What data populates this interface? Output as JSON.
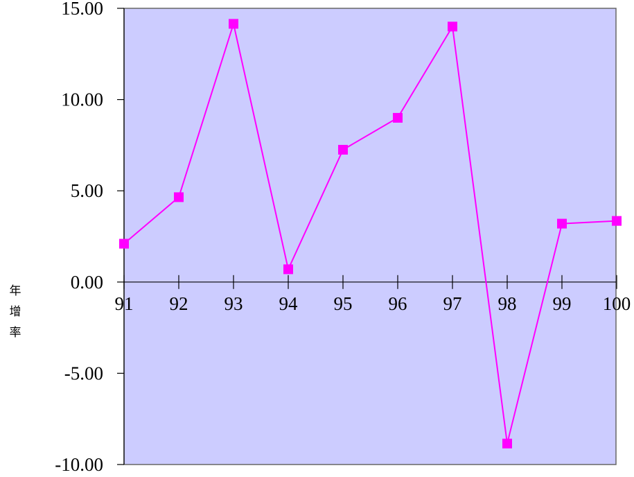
{
  "chart_data": {
    "type": "line",
    "title": "",
    "xlabel": "",
    "ylabel": [
      "年",
      "增",
      "率"
    ],
    "x": [
      "91",
      "92",
      "93",
      "94",
      "95",
      "96",
      "97",
      "98",
      "99",
      "100"
    ],
    "series": [
      {
        "values": [
          2.1,
          4.65,
          14.15,
          0.7,
          7.25,
          9.0,
          14.0,
          -8.85,
          3.2,
          3.35
        ]
      }
    ],
    "ylim": [
      -10,
      15
    ],
    "yticks": [
      "15.00",
      "10.00",
      "5.00",
      "0.00",
      "-5.00",
      "-10.00"
    ],
    "grid": false,
    "legend": "none",
    "colors": {
      "plot_background": "#ccccff",
      "series": "#ff00ff",
      "axis": "#000000",
      "frame": "#666666"
    }
  }
}
